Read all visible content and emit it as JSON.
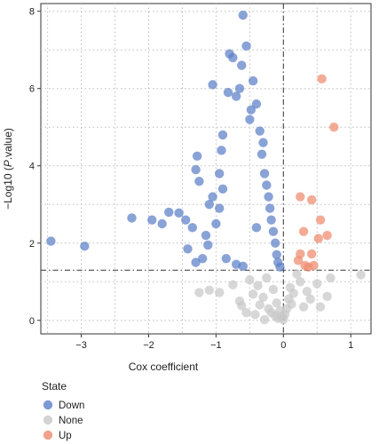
{
  "chart_data": {
    "type": "scatter",
    "xlabel": "Cox coefficient",
    "ylabel_prefix": "−Log10 (",
    "ylabel_italic": "P",
    "ylabel_suffix": ".value)",
    "xlim": [
      -3.6,
      1.3
    ],
    "ylim": [
      -0.35,
      8.2
    ],
    "x_ticks": [
      -3,
      -2,
      -1,
      0,
      1
    ],
    "x_tick_labels": [
      "−3",
      "−2",
      "−1",
      "0",
      "1"
    ],
    "y_ticks": [
      0,
      2,
      4,
      6,
      8
    ],
    "y_tick_labels": [
      "0",
      "2",
      "4",
      "6",
      "8"
    ],
    "grid": "dotted",
    "threshold_lines": {
      "x": 0,
      "y": 1.3
    },
    "legend": {
      "title": "State",
      "position": "bottom-left",
      "entries": [
        {
          "label": "Down",
          "color": "#5b80c8"
        },
        {
          "label": "None",
          "color": "#c8c8c8"
        },
        {
          "label": "Up",
          "color": "#ee8a6e"
        }
      ]
    },
    "series": [
      {
        "name": "Down",
        "color": "#5b80c8",
        "points": [
          [
            -3.45,
            2.05
          ],
          [
            -2.95,
            1.92
          ],
          [
            -2.25,
            2.65
          ],
          [
            -1.95,
            2.6
          ],
          [
            -1.8,
            2.5
          ],
          [
            -1.7,
            2.8
          ],
          [
            -1.55,
            2.78
          ],
          [
            -1.45,
            2.6
          ],
          [
            -1.42,
            1.85
          ],
          [
            -1.35,
            2.4
          ],
          [
            -1.15,
            2.2
          ],
          [
            -1.12,
            1.95
          ],
          [
            -1.0,
            2.5
          ],
          [
            -1.05,
            3.2
          ],
          [
            -1.3,
            3.9
          ],
          [
            -1.28,
            4.25
          ],
          [
            -1.25,
            3.6
          ],
          [
            -1.1,
            3.0
          ],
          [
            -1.05,
            6.1
          ],
          [
            -0.8,
            6.9
          ],
          [
            -0.75,
            6.8
          ],
          [
            -0.7,
            5.8
          ],
          [
            -0.65,
            6.0
          ],
          [
            -0.62,
            6.6
          ],
          [
            -0.55,
            7.1
          ],
          [
            -0.6,
            7.9
          ],
          [
            -0.82,
            5.9
          ],
          [
            -0.9,
            4.8
          ],
          [
            -0.92,
            4.4
          ],
          [
            -0.95,
            3.8
          ],
          [
            -0.45,
            6.2
          ],
          [
            -0.4,
            5.6
          ],
          [
            -0.5,
            5.2
          ],
          [
            -0.48,
            5.45
          ],
          [
            -0.35,
            4.9
          ],
          [
            -0.3,
            4.6
          ],
          [
            -0.32,
            4.3
          ],
          [
            -0.28,
            3.8
          ],
          [
            -0.25,
            3.5
          ],
          [
            -0.22,
            3.2
          ],
          [
            -0.2,
            2.9
          ],
          [
            -0.18,
            2.6
          ],
          [
            -0.15,
            2.3
          ],
          [
            -0.12,
            2.0
          ],
          [
            -0.1,
            1.7
          ],
          [
            -0.08,
            1.5
          ],
          [
            -0.05,
            1.38
          ],
          [
            -0.85,
            1.6
          ],
          [
            -0.7,
            1.45
          ],
          [
            -0.6,
            1.4
          ],
          [
            -1.3,
            1.5
          ],
          [
            -1.2,
            1.6
          ],
          [
            -0.95,
            2.9
          ],
          [
            -0.9,
            3.4
          ],
          [
            -0.4,
            2.4
          ]
        ]
      },
      {
        "name": "None",
        "color": "#c8c8c8",
        "points": [
          [
            -1.25,
            0.72
          ],
          [
            -1.1,
            0.78
          ],
          [
            -0.95,
            0.72
          ],
          [
            -0.75,
            0.92
          ],
          [
            -0.65,
            0.5
          ],
          [
            -0.62,
            0.38
          ],
          [
            -0.5,
            1.05
          ],
          [
            -0.45,
            0.68
          ],
          [
            -0.38,
            0.9
          ],
          [
            -0.35,
            0.4
          ],
          [
            -0.3,
            0.6
          ],
          [
            -0.25,
            1.1
          ],
          [
            -0.22,
            0.3
          ],
          [
            -0.18,
            0.2
          ],
          [
            -0.15,
            0.8
          ],
          [
            -0.12,
            0.12
          ],
          [
            -0.1,
            0.45
          ],
          [
            -0.08,
            0.05
          ],
          [
            -0.05,
            0.25
          ],
          [
            -0.02,
            0.1
          ],
          [
            0.0,
            0.02
          ],
          [
            0.02,
            0.15
          ],
          [
            0.05,
            0.3
          ],
          [
            0.08,
            0.55
          ],
          [
            0.1,
            0.85
          ],
          [
            0.15,
            0.7
          ],
          [
            0.2,
            1.2
          ],
          [
            0.25,
            1.0
          ],
          [
            0.3,
            0.35
          ],
          [
            0.35,
            0.75
          ],
          [
            0.4,
            0.55
          ],
          [
            0.5,
            0.95
          ],
          [
            0.55,
            0.35
          ],
          [
            0.65,
            0.62
          ],
          [
            0.7,
            1.1
          ],
          [
            1.15,
            1.18
          ],
          [
            -0.55,
            0.2
          ],
          [
            -0.42,
            0.15
          ],
          [
            -0.28,
            0.02
          ],
          [
            0.12,
            0.42
          ]
        ]
      },
      {
        "name": "Up",
        "color": "#ee8a6e",
        "points": [
          [
            0.57,
            6.25
          ],
          [
            0.75,
            5.0
          ],
          [
            0.25,
            3.2
          ],
          [
            0.42,
            3.12
          ],
          [
            0.55,
            2.6
          ],
          [
            0.3,
            2.3
          ],
          [
            0.52,
            2.12
          ],
          [
            0.65,
            2.2
          ],
          [
            0.42,
            1.72
          ],
          [
            0.25,
            1.72
          ],
          [
            0.22,
            1.55
          ],
          [
            0.32,
            1.42
          ],
          [
            0.37,
            1.38
          ],
          [
            0.45,
            1.42
          ]
        ]
      }
    ]
  }
}
